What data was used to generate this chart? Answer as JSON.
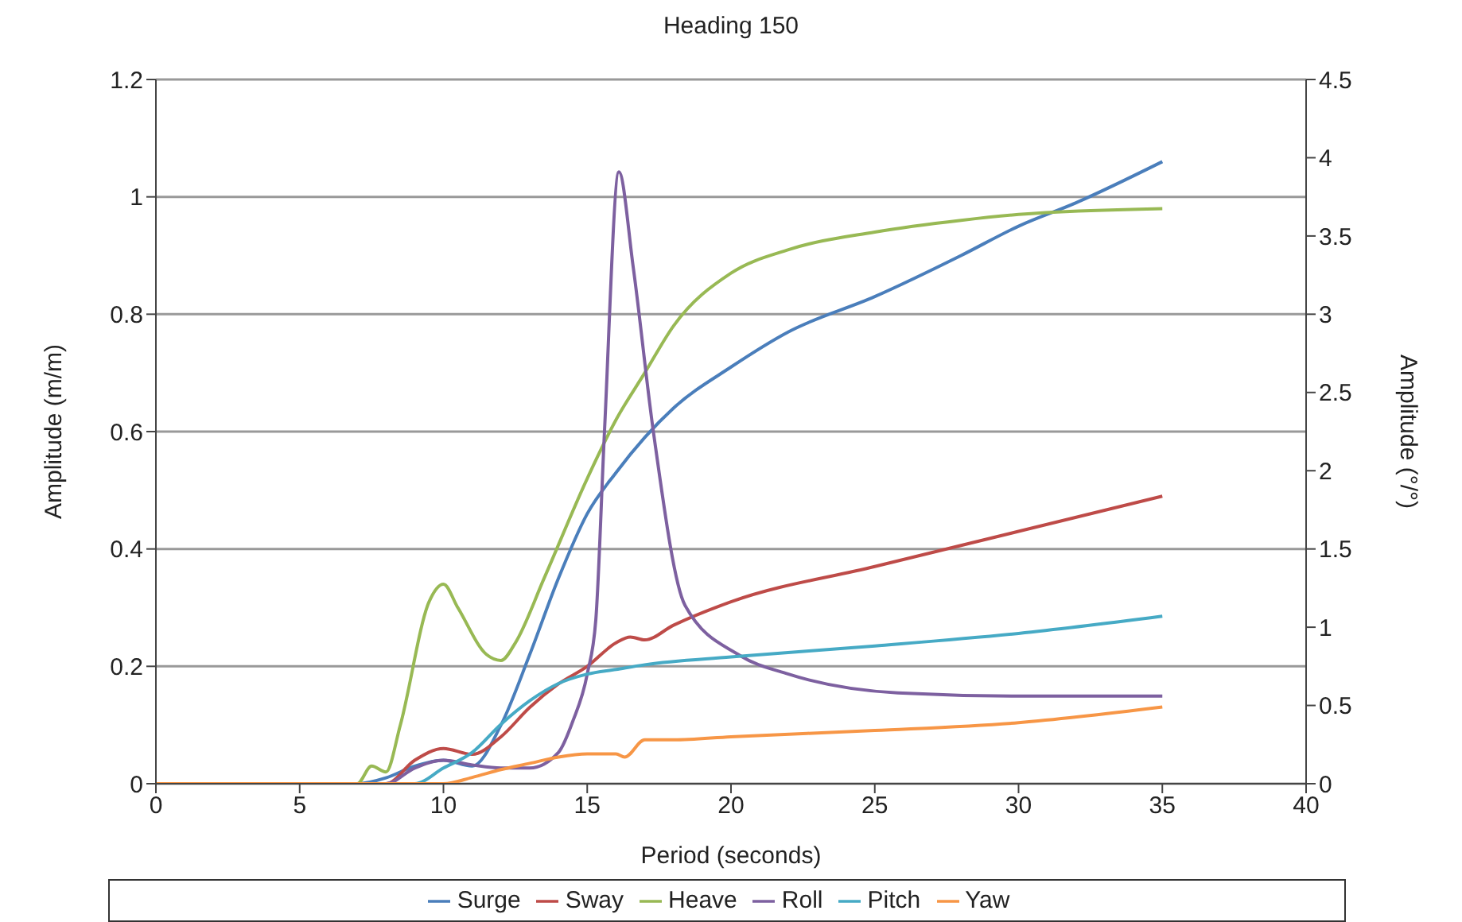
{
  "chart_data": {
    "type": "line",
    "title": "Heading 150",
    "xlabel": "Period (seconds)",
    "ylabel": "Amplitude (m/m)",
    "y2label": "Amplitude (°/°)",
    "xlim": [
      0,
      40
    ],
    "xticks": [
      0,
      5,
      10,
      15,
      20,
      25,
      30,
      35,
      40
    ],
    "ylim": [
      0,
      1.2
    ],
    "yticks": [
      0,
      0.2,
      0.4,
      0.6,
      0.8,
      1,
      1.2
    ],
    "y2lim": [
      0,
      4.5
    ],
    "y2ticks": [
      0,
      0.5,
      1,
      1.5,
      2,
      2.5,
      3,
      3.5,
      4,
      4.5
    ],
    "grid": "y",
    "legend": "bottom",
    "marker": "none",
    "series": [
      {
        "name": "Surge",
        "color": "#4a7ebb",
        "x": [
          0,
          7,
          8,
          9,
          10,
          11,
          12,
          13,
          14,
          15,
          16,
          17,
          18,
          20,
          22,
          25,
          28,
          30,
          32,
          35
        ],
        "values": [
          0,
          0,
          0.01,
          0.03,
          0.04,
          0.03,
          0.1,
          0.22,
          0.35,
          0.46,
          0.53,
          0.59,
          0.64,
          0.71,
          0.77,
          0.83,
          0.9,
          0.95,
          0.99,
          1.06
        ]
      },
      {
        "name": "Sway",
        "color": "#be4b48",
        "x": [
          0,
          8,
          9,
          10,
          11,
          12,
          13,
          14,
          15,
          16,
          16.5,
          17,
          18,
          20,
          25,
          30,
          35
        ],
        "values": [
          0,
          0,
          0.04,
          0.06,
          0.05,
          0.08,
          0.13,
          0.17,
          0.2,
          0.24,
          0.25,
          0.245,
          0.27,
          0.31,
          0.37,
          0.43,
          0.49
        ]
      },
      {
        "name": "Heave",
        "color": "#98b954",
        "x": [
          0,
          7,
          7.5,
          8,
          8.5,
          9.5,
          10,
          10.5,
          11.5,
          12,
          12.5,
          13.5,
          15,
          16,
          17,
          18,
          20,
          22,
          25,
          28,
          30,
          35
        ],
        "values": [
          0,
          0,
          0.03,
          0.02,
          0.1,
          0.31,
          0.34,
          0.3,
          0.22,
          0.21,
          0.24,
          0.35,
          0.52,
          0.62,
          0.7,
          0.78,
          0.87,
          0.91,
          0.94,
          0.96,
          0.97,
          0.98
        ]
      },
      {
        "name": "Roll",
        "color": "#7d60a0",
        "axis": "y2",
        "x": [
          0,
          8,
          9,
          10,
          11,
          12,
          13,
          14,
          14.5,
          15,
          15.3,
          15.6,
          16.1,
          16.6,
          17.3,
          18.4,
          20.3,
          22,
          25.8,
          30,
          35
        ],
        "values": [
          0,
          0,
          0.1,
          0.15,
          0.12,
          0.1,
          0.1,
          0.2,
          0.4,
          0.7,
          1.05,
          2.25,
          3.91,
          3.3,
          2.25,
          1.14,
          0.82,
          0.7,
          0.58,
          0.56,
          0.56
        ]
      },
      {
        "name": "Pitch",
        "color": "#46aac5",
        "axis": "y2",
        "x": [
          0,
          9,
          10,
          11,
          12,
          13,
          14,
          15,
          16,
          17,
          20,
          25,
          30,
          35
        ],
        "values": [
          0,
          0,
          0.1,
          0.2,
          0.38,
          0.53,
          0.64,
          0.7,
          0.73,
          0.76,
          0.81,
          0.88,
          0.96,
          1.07
        ]
      },
      {
        "name": "Yaw",
        "color": "#f79646",
        "axis": "y2",
        "x": [
          0,
          10,
          11,
          12,
          13,
          14,
          15,
          16,
          16.3,
          17,
          18,
          20,
          25,
          30,
          35
        ],
        "values": [
          0,
          0,
          0.04,
          0.09,
          0.13,
          0.17,
          0.19,
          0.19,
          0.17,
          0.28,
          0.28,
          0.3,
          0.34,
          0.39,
          0.49
        ]
      }
    ]
  }
}
